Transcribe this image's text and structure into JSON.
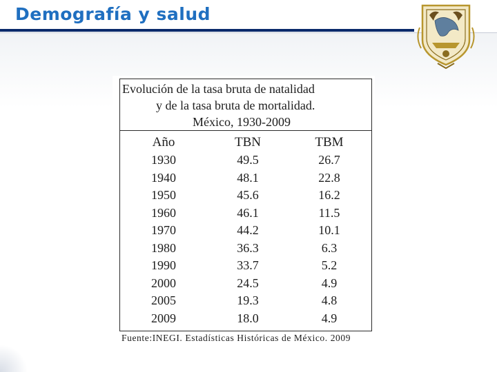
{
  "slide": {
    "title": "Demografía y salud"
  },
  "table": {
    "caption_lines": [
      "Evolución de la tasa bruta de natalidad",
      "y de la tasa bruta de mortalidad.",
      "México, 1930-2009"
    ],
    "columns": [
      "Año",
      "TBN",
      "TBM"
    ],
    "rows": [
      [
        "1930",
        "49.5",
        "26.7"
      ],
      [
        "1940",
        "48.1",
        "22.8"
      ],
      [
        "1950",
        "45.6",
        "16.2"
      ],
      [
        "1960",
        "46.1",
        "11.5"
      ],
      [
        "1970",
        "44.2",
        "10.1"
      ],
      [
        "1980",
        "36.3",
        "6.3"
      ],
      [
        "1990",
        "33.7",
        "5.2"
      ],
      [
        "2000",
        "24.5",
        "4.9"
      ],
      [
        "2005",
        "19.3",
        "4.8"
      ],
      [
        "2009",
        "18.0",
        "4.9"
      ]
    ],
    "source": "Fuente:INEGI. Estadísticas Históricas de México. 2009"
  },
  "colors": {
    "title": "#1f6fc0",
    "header_rule": "#0a2a6b",
    "logo_gold": "#b8962e"
  },
  "icons": {
    "logo": "unam-coat-of-arms-icon"
  }
}
